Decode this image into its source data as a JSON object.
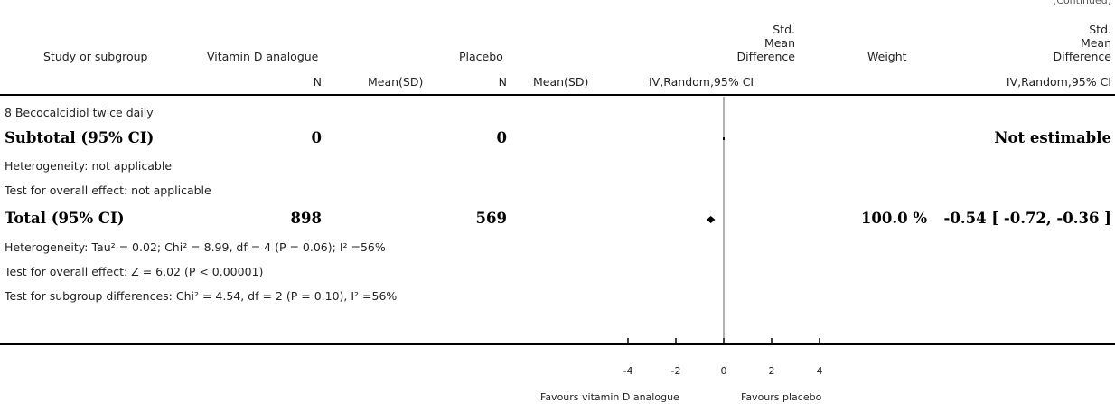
{
  "header": {
    "corner_label": "(Continued)",
    "study_col": "Study or subgroup",
    "treatment_col": "Vitamin D analogue",
    "control_col": "Placebo",
    "smd_col": [
      "Std.",
      "Mean",
      "Difference"
    ],
    "weight_col": "Weight",
    "smd2_col": [
      "Std.",
      "Mean",
      "Difference"
    ],
    "n1": "N",
    "mean1": "Mean(SD)",
    "n2": "N",
    "mean2": "Mean(SD)",
    "method": "IV,Random,95% CI",
    "method2": "IV,Random,95% CI"
  },
  "rows": {
    "subgroup_label": "8 Becocalcidiol twice daily",
    "subtotal_label": "Subtotal (95% CI)",
    "subtotal_n1": "0",
    "subtotal_n2": "0",
    "subtotal_effect": "Not estimable",
    "subtotal_het": "Heterogeneity: not applicable",
    "subtotal_test": "Test for overall effect: not applicable",
    "total_label": "Total (95% CI)",
    "total_n1": "898",
    "total_n2": "569",
    "total_weight": "100.0 %",
    "total_effect": "-0.54 [ -0.72, -0.36 ]",
    "total_het": "Heterogeneity: Tau² = 0.02; Chi² = 8.99, df = 4 (P = 0.06); I² =56%",
    "total_test": "Test for overall effect: Z = 6.02 (P < 0.00001)",
    "subgroup_test": "Test for subgroup differences: Chi² = 4.54, df = 2 (P = 0.10), I² =56%"
  },
  "axis": {
    "favours_left": "Favours vitamin D analogue",
    "favours_right": "Favours placebo"
  },
  "chart_data": {
    "type": "forest",
    "x_ticks": [
      -4,
      -2,
      0,
      2,
      4
    ],
    "xlim": [
      -4,
      4
    ],
    "reference_line": 0,
    "estimates": [
      {
        "label": "Subtotal (95% CI)",
        "estimate": null,
        "ci": null
      },
      {
        "label": "Total (95% CI)",
        "estimate": -0.54,
        "ci": [
          -0.72,
          -0.36
        ],
        "shape": "diamond"
      }
    ]
  }
}
